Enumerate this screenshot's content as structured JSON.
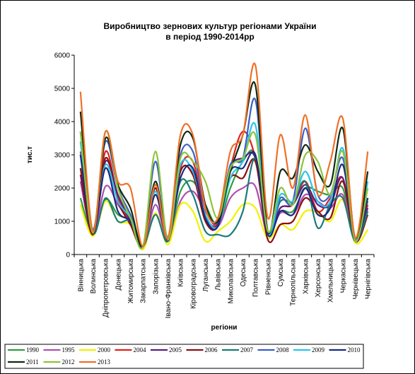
{
  "chart_data": {
    "type": "line",
    "title_line1": "Виробництво зернових культур регіонами України",
    "title_line2": "в період 1990-2014рр",
    "xlabel": "регіони",
    "ylabel": "тис.т",
    "ylim": [
      0,
      6000
    ],
    "yticks": [
      "0",
      "1000",
      "2000",
      "3000",
      "4000",
      "5000",
      "6000"
    ],
    "grid": false,
    "legend_position": "bottom",
    "categories": [
      "Вінницька",
      "Волинська",
      "Дніпропетровська",
      "Донецька",
      "Житомирська",
      "Закарпатська",
      "Запорізька",
      "Івано-Франківська",
      "Київська",
      "Кіровоградська",
      "Луганська",
      "Львівська",
      "Миколаївська",
      "Одеська",
      "Полтавська",
      "Рівненська",
      "Сумська",
      "Тернопільська",
      "Харківська",
      "Херсонська",
      "Хмельницька",
      "Черкаська",
      "Чернівецька",
      "Чернігівська"
    ],
    "series": [
      {
        "name": "1990",
        "color": "#2e9e40",
        "values": [
          1700,
          600,
          1650,
          1200,
          1000,
          250,
          1200,
          400,
          1900,
          2200,
          1500,
          900,
          2000,
          2800,
          3000,
          700,
          1300,
          1300,
          2000,
          1900,
          1800,
          2000,
          500,
          1600
        ]
      },
      {
        "name": "1995",
        "color": "#b04fb0",
        "values": [
          2200,
          600,
          2050,
          1500,
          950,
          200,
          1500,
          400,
          1600,
          1900,
          1300,
          850,
          1700,
          2000,
          2050,
          600,
          1250,
          1200,
          1800,
          1600,
          1400,
          1800,
          500,
          1300
        ]
      },
      {
        "name": "2000",
        "color": "#f2f200",
        "values": [
          1500,
          550,
          1600,
          1000,
          900,
          150,
          1250,
          300,
          1500,
          1300,
          400,
          700,
          1000,
          1500,
          1400,
          500,
          900,
          750,
          1300,
          1250,
          1000,
          1650,
          350,
          750
        ]
      },
      {
        "name": "2004",
        "color": "#e0201e",
        "values": [
          3100,
          650,
          3100,
          1700,
          1000,
          250,
          2100,
          400,
          2600,
          2800,
          1200,
          950,
          2600,
          3700,
          2900,
          700,
          1400,
          1500,
          2200,
          1300,
          1700,
          2300,
          400,
          1500
        ]
      },
      {
        "name": "2005",
        "color": "#5a2080",
        "values": [
          2400,
          600,
          2800,
          1800,
          1000,
          250,
          2000,
          400,
          2500,
          2400,
          1100,
          900,
          2600,
          2900,
          2900,
          700,
          1400,
          1500,
          2100,
          1500,
          1500,
          2300,
          400,
          1400
        ]
      },
      {
        "name": "2006",
        "color": "#8b0f10",
        "values": [
          2600,
          600,
          2900,
          1600,
          900,
          250,
          2000,
          400,
          2500,
          2400,
          1000,
          850,
          2300,
          2300,
          2800,
          450,
          900,
          1000,
          1700,
          1300,
          1100,
          2200,
          400,
          1200
        ]
      },
      {
        "name": "2007",
        "color": "#1a7a7a",
        "values": [
          3000,
          650,
          1700,
          1000,
          1000,
          250,
          1200,
          400,
          2200,
          1800,
          700,
          600,
          600,
          1300,
          2900,
          650,
          1600,
          1600,
          2200,
          800,
          1500,
          1700,
          400,
          1300
        ]
      },
      {
        "name": "2008",
        "color": "#3b5ec8",
        "values": [
          3700,
          750,
          3400,
          2000,
          1200,
          250,
          2800,
          500,
          3000,
          3100,
          1400,
          1000,
          2700,
          2900,
          4650,
          700,
          1700,
          1600,
          3800,
          1800,
          1800,
          2900,
          450,
          1700
        ]
      },
      {
        "name": "2009",
        "color": "#2ac4ec",
        "values": [
          3400,
          700,
          2700,
          1600,
          1100,
          250,
          1900,
          450,
          2700,
          2500,
          1200,
          850,
          2300,
          2800,
          3900,
          650,
          1800,
          1600,
          2500,
          1600,
          1600,
          3200,
          450,
          2200
        ]
      },
      {
        "name": "2010",
        "color": "#1a2a80",
        "values": [
          3000,
          650,
          2600,
          1300,
          1000,
          250,
          1800,
          450,
          2300,
          2600,
          1100,
          850,
          2500,
          2600,
          3000,
          600,
          1300,
          1200,
          2000,
          1200,
          1400,
          2700,
          400,
          1700
        ]
      },
      {
        "name": "2011",
        "color": "#102a10",
        "values": [
          4300,
          650,
          3500,
          2100,
          1400,
          250,
          2200,
          500,
          3300,
          3500,
          1500,
          1000,
          2500,
          3600,
          5100,
          700,
          2500,
          2300,
          3300,
          2500,
          2100,
          3800,
          500,
          2500
        ]
      },
      {
        "name": "2012",
        "color": "#8cc43c",
        "values": [
          3700,
          650,
          3700,
          2000,
          1100,
          250,
          3100,
          450,
          2900,
          2800,
          2200,
          1100,
          2600,
          2900,
          3600,
          700,
          2000,
          1500,
          3000,
          2800,
          1800,
          3100,
          400,
          2000
        ]
      },
      {
        "name": "2013",
        "color": "#f07028",
        "values": [
          4900,
          700,
          3700,
          2200,
          2000,
          250,
          2100,
          500,
          3600,
          3600,
          1400,
          1100,
          3100,
          3600,
          5700,
          1100,
          3600,
          2000,
          4200,
          1800,
          2800,
          4100,
          500,
          3100
        ]
      }
    ]
  }
}
